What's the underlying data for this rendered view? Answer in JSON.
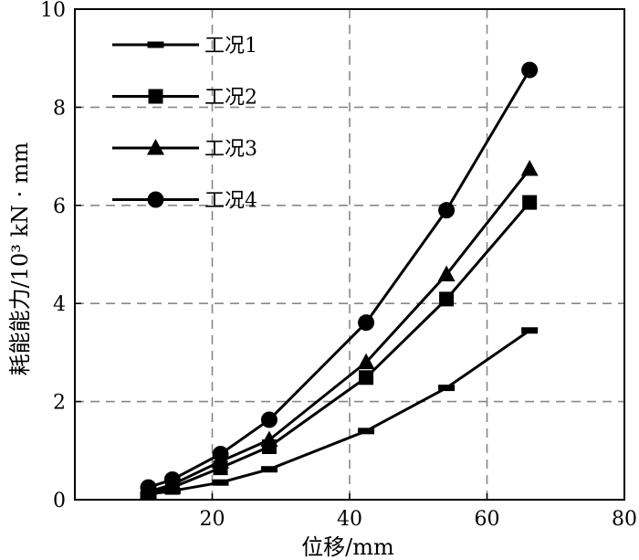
{
  "chart_data": {
    "type": "line",
    "xlabel": "位移/mm",
    "ylabel": "耗能能力/10³ kN · mm",
    "xlim": [
      0,
      80
    ],
    "ylim": [
      0,
      10
    ],
    "xticks": [
      20,
      40,
      60,
      80
    ],
    "yticks": [
      0,
      2,
      4,
      6,
      8,
      10
    ],
    "grid": true,
    "grid_style": "dashed",
    "legend_position": "top-left",
    "series": [
      {
        "name": "工况1",
        "marker": "dash",
        "x": [
          10.7,
          14.2,
          21.2,
          28.3,
          42.4,
          54.1,
          66.2
        ],
        "y": [
          0.11,
          0.18,
          0.35,
          0.62,
          1.4,
          2.28,
          3.45
        ]
      },
      {
        "name": "工况2",
        "marker": "square",
        "x": [
          10.7,
          14.2,
          21.2,
          28.3,
          42.4,
          54.1,
          66.2
        ],
        "y": [
          0.14,
          0.25,
          0.65,
          1.08,
          2.49,
          4.09,
          6.06
        ]
      },
      {
        "name": "工况3",
        "marker": "triangle",
        "x": [
          10.7,
          14.2,
          21.2,
          28.3,
          42.4,
          54.1,
          66.2
        ],
        "y": [
          0.16,
          0.31,
          0.78,
          1.22,
          2.8,
          4.59,
          6.74
        ]
      },
      {
        "name": "工况4",
        "marker": "circle",
        "x": [
          10.7,
          14.2,
          21.2,
          28.3,
          42.4,
          54.1,
          66.2
        ],
        "y": [
          0.25,
          0.41,
          0.93,
          1.63,
          3.61,
          5.9,
          8.76
        ]
      }
    ]
  }
}
